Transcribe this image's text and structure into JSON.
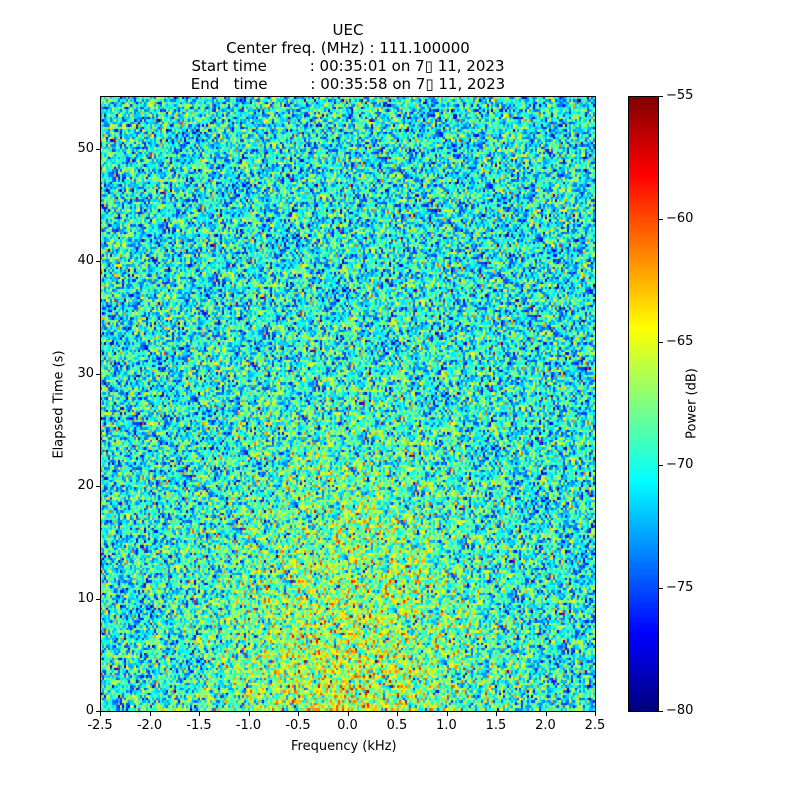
{
  "chart_data": {
    "type": "heatmap",
    "title_lines": [
      "UEC",
      "Center freq. (MHz) : 111.100000",
      "Start time         : 00:35:01 on 7▯ 11, 2023",
      "End   time         : 00:35:58 on 7▯ 11, 2023"
    ],
    "xlabel": "Frequency (kHz)",
    "ylabel": "Elapsed Time (s)",
    "xlim": [
      -2.5,
      2.5
    ],
    "ylim": [
      0,
      54.7
    ],
    "xticks": [
      "-2.5",
      "-2.0",
      "-1.5",
      "-1.0",
      "-0.5",
      "0.0",
      "0.5",
      "1.0",
      "1.5",
      "2.0",
      "2.5"
    ],
    "xtick_values": [
      -2.5,
      -2.0,
      -1.5,
      -1.0,
      -0.5,
      0.0,
      0.5,
      1.0,
      1.5,
      2.0,
      2.5
    ],
    "yticks": [
      "0",
      "10",
      "20",
      "30",
      "40",
      "50"
    ],
    "ytick_values": [
      0,
      10,
      20,
      30,
      40,
      50
    ],
    "colorbar": {
      "label": "Power (dB)",
      "colormap": "jet",
      "range": [
        -80,
        -55
      ],
      "ticks": [
        "−55",
        "−60",
        "−65",
        "−70",
        "−75",
        "−80"
      ],
      "tick_values": [
        -55,
        -60,
        -65,
        -70,
        -75,
        -80
      ]
    },
    "grid": false,
    "noise_model": {
      "background_mean_db": -70.5,
      "enhanced_region_mean_db": -67,
      "enhanced_region_freq_khz": [
        -1.0,
        1.0
      ],
      "enhanced_region_time_s": [
        0,
        25
      ],
      "std_db": 3.5
    }
  }
}
